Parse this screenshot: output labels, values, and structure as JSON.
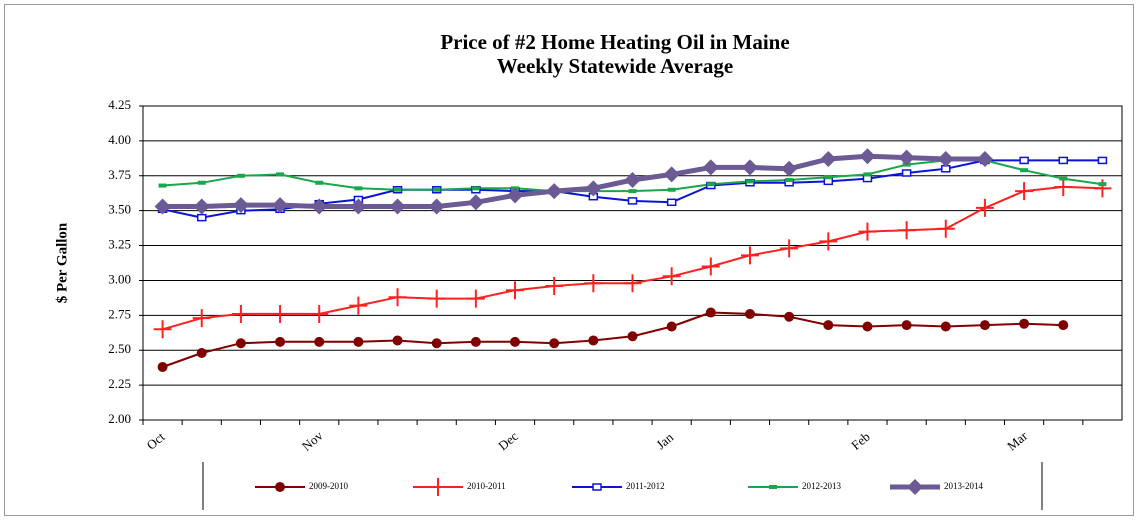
{
  "chart_data": {
    "type": "line",
    "title": "Price of #2 Home Heating Oil in Maine",
    "subtitle": "Weekly Statewide Average",
    "y_label": "$ Per Gallon",
    "categories": [
      "Oct",
      null,
      null,
      null,
      "Nov",
      null,
      null,
      null,
      null,
      "Dec",
      null,
      null,
      null,
      "Jan",
      null,
      null,
      null,
      null,
      "Feb",
      null,
      null,
      null,
      "Mar",
      null,
      null
    ],
    "ylim": [
      2.0,
      4.25
    ],
    "yticks": [
      {
        "value": 2.0,
        "label": "2.00"
      },
      2.25,
      {
        "value": 2.5,
        "label": "2.50"
      },
      2.75,
      {
        "value": 3.0,
        "label": "3.00"
      },
      3.25,
      {
        "value": 3.5,
        "label": "3.50"
      },
      3.75,
      {
        "value": 4.0,
        "label": "4.00"
      },
      4.25
    ],
    "grid": true,
    "legend": "bottom",
    "series": [
      {
        "name": "2009-2010",
        "color": "#800000",
        "marker": "circle",
        "values": [
          2.38,
          2.48,
          2.55,
          2.56,
          2.56,
          2.56,
          2.57,
          2.55,
          2.56,
          2.56,
          2.55,
          2.57,
          2.6,
          2.67,
          2.77,
          2.76,
          2.74,
          2.68,
          2.67,
          2.68,
          2.67,
          2.68,
          2.69,
          2.68,
          null
        ]
      },
      {
        "name": "2010-2011",
        "color": "#ff2020",
        "marker": "plus",
        "values": [
          2.65,
          2.73,
          2.76,
          2.76,
          2.76,
          2.82,
          2.88,
          2.87,
          2.87,
          2.93,
          2.96,
          2.98,
          2.98,
          3.03,
          3.1,
          3.18,
          3.23,
          3.28,
          3.35,
          3.36,
          3.37,
          3.52,
          3.64,
          3.67,
          3.66
        ]
      },
      {
        "name": "2011-2012",
        "color": "#0a14d8",
        "marker": "square",
        "values": [
          3.51,
          3.45,
          3.5,
          3.51,
          3.55,
          3.58,
          3.65,
          3.65,
          3.65,
          3.64,
          3.64,
          3.6,
          3.57,
          3.56,
          3.68,
          3.7,
          3.7,
          3.71,
          3.73,
          3.77,
          3.8,
          3.86,
          3.86,
          3.86,
          3.86
        ]
      },
      {
        "name": "2012-2013",
        "color": "#1aa64a",
        "marker": "dash",
        "values": [
          3.68,
          3.7,
          3.75,
          3.76,
          3.7,
          3.66,
          3.65,
          3.65,
          3.66,
          3.66,
          3.64,
          3.64,
          3.64,
          3.65,
          3.69,
          3.71,
          3.72,
          3.74,
          3.76,
          3.83,
          3.86,
          3.86,
          3.79,
          3.73,
          3.69
        ]
      },
      {
        "name": "2013-2014",
        "color": "#6b5a94",
        "marker": "diamond",
        "values": [
          3.53,
          3.53,
          3.54,
          3.54,
          3.53,
          3.53,
          3.53,
          3.53,
          3.56,
          3.61,
          3.64,
          3.66,
          3.72,
          3.76,
          3.81,
          3.81,
          3.8,
          3.87,
          3.89,
          3.88,
          3.87,
          3.87,
          null,
          null,
          null
        ]
      }
    ]
  }
}
